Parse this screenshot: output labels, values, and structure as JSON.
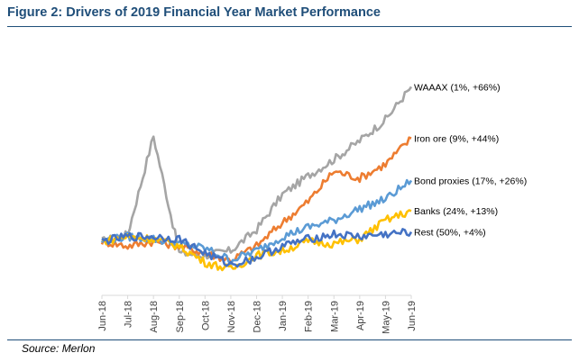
{
  "figure": {
    "title": "Figure 2: Drivers of 2019 Financial Year Market Performance",
    "source": "Source: Merlon"
  },
  "chart_data": {
    "type": "line",
    "categories": [
      "Jun-18",
      "Jul-18",
      "Aug-18",
      "Sep-18",
      "Oct-18",
      "Nov-18",
      "Dec-18",
      "Jan-19",
      "Feb-19",
      "Mar-19",
      "Apr-19",
      "May-19",
      "Jun-19"
    ],
    "ylim": [
      -0.2,
      0.8
    ],
    "grid": false,
    "legend": "end-of-line labels",
    "series": [
      {
        "name": "WAAAX (1%, +66%)",
        "color": "#a5a5a5",
        "values": [
          0.0,
          0.03,
          0.45,
          -0.05,
          -0.06,
          -0.04,
          0.05,
          0.2,
          0.28,
          0.35,
          0.43,
          0.52,
          0.66
        ]
      },
      {
        "name": "Iron ore (9%, +44%)",
        "color": "#ed7d31",
        "values": [
          0.0,
          -0.02,
          0.0,
          -0.02,
          -0.05,
          -0.08,
          -0.02,
          0.08,
          0.17,
          0.3,
          0.27,
          0.33,
          0.44
        ]
      },
      {
        "name": "Bond proxies (17%, +26%)",
        "color": "#5b9bd5",
        "values": [
          0.0,
          0.02,
          0.01,
          -0.01,
          -0.03,
          -0.08,
          -0.04,
          0.02,
          0.06,
          0.09,
          0.14,
          0.18,
          0.26
        ]
      },
      {
        "name": "Banks (24%, +13%)",
        "color": "#ffc000",
        "values": [
          0.0,
          0.02,
          0.01,
          -0.02,
          -0.09,
          -0.12,
          -0.06,
          -0.04,
          0.0,
          -0.01,
          0.01,
          0.09,
          0.13
        ]
      },
      {
        "name": "Rest (50%, +4%)",
        "color": "#4472c4",
        "values": [
          0.0,
          0.02,
          0.02,
          0.01,
          -0.05,
          -0.1,
          -0.07,
          -0.02,
          0.01,
          0.03,
          0.02,
          0.03,
          0.04
        ]
      }
    ]
  }
}
